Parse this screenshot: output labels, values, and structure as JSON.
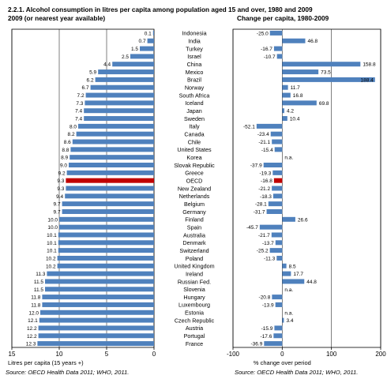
{
  "header": {
    "title_line1": "2.2.1. Alcohol consumption in litres per capita among population aged 15 and over, 1980 and 2009",
    "left_subtitle": "2009 (or nearest year available)",
    "right_subtitle": "Change per capita, 1980-2009"
  },
  "footer": {
    "left_source": "Source: OECD Health Data 2011; WHO, 2011.",
    "right_source": "Source: OECD Health Data 2011; WHO, 2011."
  },
  "colors": {
    "bar": "#4f81bd",
    "highlight": "#c00000",
    "axis": "#000000",
    "grid": "#000000"
  },
  "chart_data": [
    {
      "type": "bar",
      "orientation": "horizontal",
      "title": "2009 (or nearest year available)",
      "xlabel": "Litres per capita (15 years +)",
      "xlim": [
        0,
        15
      ],
      "x_reversed": true,
      "xticks": [
        15,
        10,
        5,
        0
      ],
      "grid": true,
      "highlight_category": "OECD",
      "categories": [
        "Indonesia",
        "India",
        "Turkey",
        "Israel",
        "China",
        "Mexico",
        "Brazil",
        "Norway",
        "South Africa",
        "Iceland",
        "Japan",
        "Sweden",
        "Italy",
        "Canada",
        "Chile",
        "United States",
        "Korea",
        "Slovak Republic",
        "Greece",
        "OECD",
        "New Zealand",
        "Netherlands",
        "Belgium",
        "Germany",
        "Finland",
        "Spain",
        "Australia",
        "Denmark",
        "Switzerland",
        "Poland",
        "United Kingdom",
        "Ireland",
        "Russian Fed.",
        "Slovenia",
        "Hungary",
        "Luxembourg",
        "Estonia",
        "Czech Republic",
        "Austria",
        "Portugal",
        "France"
      ],
      "values": [
        0.1,
        0.7,
        1.5,
        2.5,
        4.4,
        5.9,
        6.2,
        6.7,
        7.2,
        7.3,
        7.4,
        7.4,
        8.0,
        8.2,
        8.6,
        8.8,
        8.9,
        9.0,
        9.2,
        9.3,
        9.3,
        9.4,
        9.7,
        9.7,
        10.0,
        10.0,
        10.1,
        10.1,
        10.1,
        10.2,
        10.2,
        11.3,
        11.5,
        11.5,
        11.8,
        11.8,
        12.0,
        12.1,
        12.2,
        12.2,
        12.3
      ],
      "value_labels": [
        "0.1",
        "0.7",
        "1.5",
        "2.5",
        "4.4",
        "5.9",
        "6.2",
        "6.7",
        "7.2",
        "7.3",
        "7.4",
        "7.4",
        "8.0",
        "8.2",
        "8.6",
        "8.8",
        "8.9",
        "9.0",
        "9.2",
        "9.3",
        "9.3",
        "9.4",
        "9.7",
        "9.7",
        "10.0",
        "10.0",
        "10.1",
        "10.1",
        "10.1",
        "10.2",
        "10.2",
        "11.3",
        "11.5",
        "11.5",
        "11.8",
        "11.8",
        "12.0",
        "12.1",
        "12.2",
        "12.2",
        "12.3"
      ]
    },
    {
      "type": "bar",
      "orientation": "horizontal",
      "title": "Change per capita, 1980-2009",
      "xlabel": "% change over period",
      "xlim": [
        -100,
        200
      ],
      "xticks": [
        -100,
        0,
        100,
        200
      ],
      "grid": true,
      "highlight_category": "OECD",
      "categories": [
        "Indonesia",
        "India",
        "Turkey",
        "Israel",
        "China",
        "Mexico",
        "Brazil",
        "Norway",
        "South Africa",
        "Iceland",
        "Japan",
        "Sweden",
        "Italy",
        "Canada",
        "Chile",
        "United States",
        "Korea",
        "Slovak Republic",
        "Greece",
        "OECD",
        "New Zealand",
        "Netherlands",
        "Belgium",
        "Germany",
        "Finland",
        "Spain",
        "Australia",
        "Denmark",
        "Switzerland",
        "Poland",
        "United Kingdom",
        "Ireland",
        "Russian Fed.",
        "Slovenia",
        "Hungary",
        "Luxembourg",
        "Estonia",
        "Czech Republic",
        "Austria",
        "Portugal",
        "France"
      ],
      "values": [
        -25.0,
        46.8,
        -16.7,
        -10.7,
        158.8,
        73.5,
        188.4,
        11.7,
        16.8,
        69.8,
        4.2,
        10.4,
        -52.1,
        -23.4,
        -21.1,
        -15.4,
        null,
        -37.9,
        -19.3,
        -16.8,
        -21.2,
        -18.3,
        -28.1,
        -31.7,
        26.6,
        -45.7,
        -21.7,
        -13.7,
        -25.2,
        -11.3,
        8.5,
        17.7,
        44.8,
        null,
        -20.8,
        -13.9,
        null,
        3.4,
        -15.9,
        -17.6,
        -36.9
      ],
      "value_labels": [
        "-25.0",
        "46.8",
        "-16.7",
        "-10.7",
        "158.8",
        "73.5",
        "188.4",
        "11.7",
        "16.8",
        "69.8",
        "4.2",
        "10.4",
        "-52.1",
        "-23.4",
        "-21.1",
        "-15.4",
        "n.a.",
        "-37.9",
        "-19.3",
        "-16.8",
        "-21.2",
        "-18.3",
        "-28.1",
        "-31.7",
        "26.6",
        "-45.7",
        "-21.7",
        "-13.7",
        "-25.2",
        "-11.3",
        "8.5",
        "17.7",
        "44.8",
        "n.a.",
        "-20.8",
        "-13.9",
        "n.a.",
        "3.4",
        "-15.9",
        "-17.6",
        "-36.9"
      ]
    }
  ]
}
